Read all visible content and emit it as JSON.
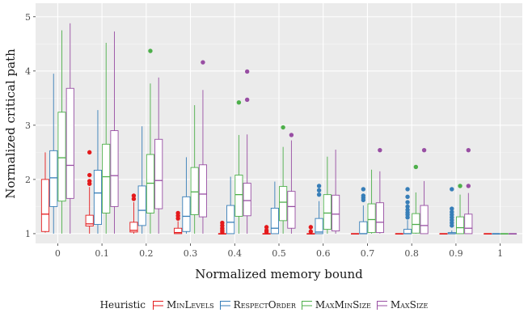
{
  "chart_data": {
    "type": "boxplot",
    "xlabel": "Normalized memory bound",
    "ylabel": "Normalized critical path",
    "ylim": [
      0.82,
      5.25
    ],
    "yticks": [
      1,
      2,
      3,
      4,
      5
    ],
    "grid": true,
    "background": "#ebebeb",
    "legend": {
      "title": "Heuristic",
      "position": "bottom"
    },
    "categories": [
      "0",
      "0.1",
      "0.2",
      "0.3",
      "0.4",
      "0.5",
      "0.6",
      "0.7",
      "0.8",
      "0.9",
      "1"
    ],
    "series": [
      {
        "name": "MinLevels",
        "color": "#e41a1c",
        "boxes": [
          {
            "whisker_low": 1.02,
            "q1": 1.04,
            "median": 1.36,
            "q3": 2.0,
            "whisker_high": 2.5,
            "outliers": []
          },
          {
            "whisker_low": 1.0,
            "q1": 1.14,
            "median": 1.18,
            "q3": 1.34,
            "whisker_high": 1.86,
            "outliers": [
              2.5,
              2.08,
              1.97,
              1.92
            ]
          },
          {
            "whisker_low": 1.0,
            "q1": 1.03,
            "median": 1.06,
            "q3": 1.21,
            "whisker_high": 1.58,
            "outliers": [
              1.7,
              1.64
            ]
          },
          {
            "whisker_low": 1.0,
            "q1": 1.0,
            "median": 1.02,
            "q3": 1.1,
            "whisker_high": 1.23,
            "outliers": [
              1.38,
              1.33,
              1.28
            ]
          },
          {
            "whisker_low": 1.0,
            "q1": 1.0,
            "median": 1.0,
            "q3": 1.0,
            "whisker_high": 1.0,
            "outliers": [
              1.2,
              1.15,
              1.1,
              1.06,
              1.03
            ]
          },
          {
            "whisker_low": 1.0,
            "q1": 1.0,
            "median": 1.0,
            "q3": 1.0,
            "whisker_high": 1.0,
            "outliers": [
              1.12,
              1.06,
              1.03
            ]
          },
          {
            "whisker_low": 1.0,
            "q1": 1.0,
            "median": 1.0,
            "q3": 1.0,
            "whisker_high": 1.0,
            "outliers": [
              1.12,
              1.04
            ]
          },
          {
            "whisker_low": 1.0,
            "q1": 1.0,
            "median": 1.0,
            "q3": 1.0,
            "whisker_high": 1.0,
            "outliers": []
          },
          {
            "whisker_low": 1.0,
            "q1": 1.0,
            "median": 1.0,
            "q3": 1.0,
            "whisker_high": 1.0,
            "outliers": []
          },
          {
            "whisker_low": 1.0,
            "q1": 1.0,
            "median": 1.0,
            "q3": 1.0,
            "whisker_high": 1.0,
            "outliers": []
          },
          {
            "whisker_low": 1.0,
            "q1": 1.0,
            "median": 1.0,
            "q3": 1.0,
            "whisker_high": 1.0,
            "outliers": []
          }
        ]
      },
      {
        "name": "RespectOrder",
        "color": "#377eb8",
        "boxes": [
          {
            "whisker_low": 1.0,
            "q1": 1.5,
            "median": 2.03,
            "q3": 2.53,
            "whisker_high": 3.95,
            "outliers": []
          },
          {
            "whisker_low": 1.0,
            "q1": 1.17,
            "median": 1.75,
            "q3": 2.17,
            "whisker_high": 3.28,
            "outliers": []
          },
          {
            "whisker_low": 1.0,
            "q1": 1.15,
            "median": 1.43,
            "q3": 1.88,
            "whisker_high": 2.98,
            "outliers": []
          },
          {
            "whisker_low": 1.0,
            "q1": 1.04,
            "median": 1.32,
            "q3": 1.68,
            "whisker_high": 2.41,
            "outliers": []
          },
          {
            "whisker_low": 1.0,
            "q1": 1.0,
            "median": 1.21,
            "q3": 1.52,
            "whisker_high": 2.05,
            "outliers": []
          },
          {
            "whisker_low": 1.0,
            "q1": 1.0,
            "median": 1.1,
            "q3": 1.47,
            "whisker_high": 1.96,
            "outliers": []
          },
          {
            "whisker_low": 1.0,
            "q1": 1.0,
            "median": 1.03,
            "q3": 1.28,
            "whisker_high": 1.6,
            "outliers": [
              1.88,
              1.8,
              1.72
            ]
          },
          {
            "whisker_low": 1.0,
            "q1": 1.0,
            "median": 1.0,
            "q3": 1.22,
            "whisker_high": 1.52,
            "outliers": [
              1.82,
              1.7,
              1.66,
              1.62
            ]
          },
          {
            "whisker_low": 1.0,
            "q1": 1.0,
            "median": 1.0,
            "q3": 1.08,
            "whisker_high": 1.25,
            "outliers": [
              1.82,
              1.68,
              1.58,
              1.5,
              1.44,
              1.39,
              1.35,
              1.3
            ]
          },
          {
            "whisker_low": 1.0,
            "q1": 1.0,
            "median": 1.0,
            "q3": 1.02,
            "whisker_high": 1.06,
            "outliers": [
              1.82,
              1.46,
              1.4,
              1.35,
              1.3,
              1.25,
              1.2,
              1.15
            ]
          },
          {
            "whisker_low": 1.0,
            "q1": 1.0,
            "median": 1.0,
            "q3": 1.0,
            "whisker_high": 1.0,
            "outliers": []
          }
        ]
      },
      {
        "name": "MaxMinSize",
        "color": "#4daf4a",
        "boxes": [
          {
            "whisker_low": 1.0,
            "q1": 1.6,
            "median": 2.4,
            "q3": 3.24,
            "whisker_high": 4.75,
            "outliers": []
          },
          {
            "whisker_low": 1.0,
            "q1": 1.38,
            "median": 2.05,
            "q3": 2.65,
            "whisker_high": 4.52,
            "outliers": []
          },
          {
            "whisker_low": 1.0,
            "q1": 1.38,
            "median": 1.93,
            "q3": 2.46,
            "whisker_high": 3.77,
            "outliers": [
              4.37
            ]
          },
          {
            "whisker_low": 1.0,
            "q1": 1.35,
            "median": 1.77,
            "q3": 2.22,
            "whisker_high": 3.37,
            "outliers": []
          },
          {
            "whisker_low": 1.0,
            "q1": 1.32,
            "median": 1.72,
            "q3": 2.08,
            "whisker_high": 2.82,
            "outliers": [
              3.42
            ]
          },
          {
            "whisker_low": 1.0,
            "q1": 1.24,
            "median": 1.58,
            "q3": 1.87,
            "whisker_high": 2.6,
            "outliers": [
              2.96
            ]
          },
          {
            "whisker_low": 1.0,
            "q1": 1.08,
            "median": 1.38,
            "q3": 1.72,
            "whisker_high": 2.42,
            "outliers": []
          },
          {
            "whisker_low": 1.0,
            "q1": 1.02,
            "median": 1.26,
            "q3": 1.55,
            "whisker_high": 2.18,
            "outliers": []
          },
          {
            "whisker_low": 1.0,
            "q1": 1.01,
            "median": 1.17,
            "q3": 1.37,
            "whisker_high": 1.76,
            "outliers": [
              2.23
            ]
          },
          {
            "whisker_low": 1.0,
            "q1": 1.0,
            "median": 1.11,
            "q3": 1.31,
            "whisker_high": 1.72,
            "outliers": [
              1.88
            ]
          },
          {
            "whisker_low": 1.0,
            "q1": 1.0,
            "median": 1.0,
            "q3": 1.0,
            "whisker_high": 1.0,
            "outliers": []
          }
        ]
      },
      {
        "name": "MaxSize",
        "color": "#984ea3",
        "boxes": [
          {
            "whisker_low": 1.0,
            "q1": 1.65,
            "median": 2.26,
            "q3": 3.68,
            "whisker_high": 4.88,
            "outliers": []
          },
          {
            "whisker_low": 1.0,
            "q1": 1.5,
            "median": 2.07,
            "q3": 2.9,
            "whisker_high": 4.73,
            "outliers": []
          },
          {
            "whisker_low": 1.0,
            "q1": 1.46,
            "median": 1.98,
            "q3": 2.74,
            "whisker_high": 3.88,
            "outliers": []
          },
          {
            "whisker_low": 1.0,
            "q1": 1.31,
            "median": 1.73,
            "q3": 2.27,
            "whisker_high": 3.65,
            "outliers": [
              4.16
            ]
          },
          {
            "whisker_low": 1.0,
            "q1": 1.33,
            "median": 1.61,
            "q3": 1.93,
            "whisker_high": 2.83,
            "outliers": [
              3.99,
              3.47
            ]
          },
          {
            "whisker_low": 1.0,
            "q1": 1.1,
            "median": 1.5,
            "q3": 1.78,
            "whisker_high": 2.72,
            "outliers": [
              2.82
            ]
          },
          {
            "whisker_low": 1.0,
            "q1": 1.05,
            "median": 1.36,
            "q3": 1.71,
            "whisker_high": 2.55,
            "outliers": []
          },
          {
            "whisker_low": 1.0,
            "q1": 1.02,
            "median": 1.21,
            "q3": 1.57,
            "whisker_high": 2.15,
            "outliers": [
              2.54
            ]
          },
          {
            "whisker_low": 1.0,
            "q1": 1.0,
            "median": 1.15,
            "q3": 1.52,
            "whisker_high": 1.97,
            "outliers": [
              2.54
            ]
          },
          {
            "whisker_low": 1.0,
            "q1": 1.0,
            "median": 1.1,
            "q3": 1.36,
            "whisker_high": 1.75,
            "outliers": [
              2.54,
              1.88
            ]
          },
          {
            "whisker_low": 1.0,
            "q1": 1.0,
            "median": 1.0,
            "q3": 1.0,
            "whisker_high": 1.0,
            "outliers": []
          }
        ]
      }
    ]
  }
}
